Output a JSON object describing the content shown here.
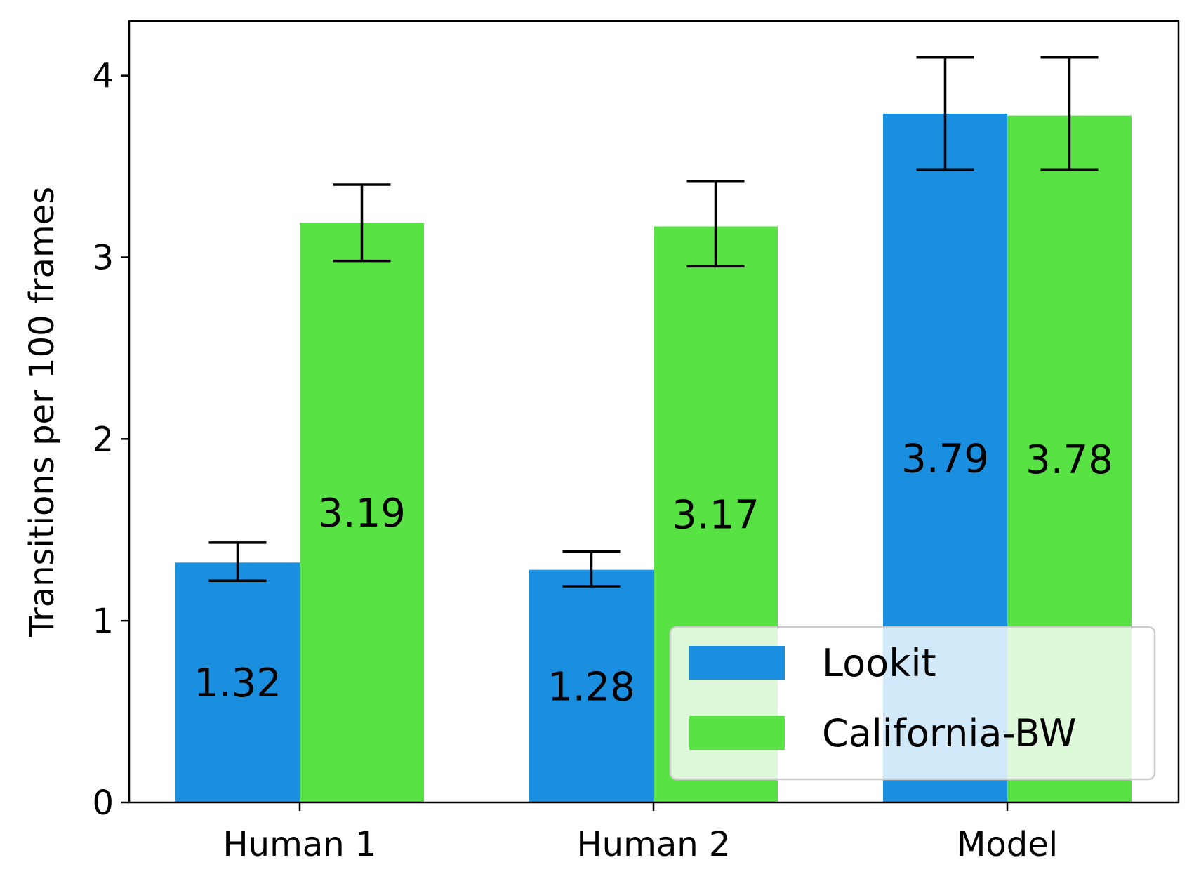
{
  "chart_data": {
    "type": "bar",
    "title": "",
    "xlabel": "",
    "ylabel": "Transitions per 100 frames",
    "categories": [
      "Human 1",
      "Human 2",
      "Model"
    ],
    "ylim": [
      0,
      4.3
    ],
    "yticks": [
      0,
      1,
      2,
      3,
      4
    ],
    "ytick_labels": [
      "0",
      "1",
      "2",
      "3",
      "4"
    ],
    "grid": false,
    "legend_position": "lower right",
    "series": [
      {
        "name": "Lookit",
        "color": "#1a8fdf",
        "values": [
          1.32,
          1.28,
          3.79
        ],
        "labels": [
          "1.32",
          "1.28",
          "3.79"
        ],
        "error_low": [
          1.22,
          1.19,
          3.48
        ],
        "error_high": [
          1.43,
          1.38,
          4.1
        ]
      },
      {
        "name": "California-BW",
        "color": "#58e244",
        "values": [
          3.19,
          3.17,
          3.78
        ],
        "labels": [
          "3.19",
          "3.17",
          "3.78"
        ],
        "error_low": [
          2.98,
          2.95,
          3.48
        ],
        "error_high": [
          3.4,
          3.42,
          4.1
        ]
      }
    ]
  }
}
